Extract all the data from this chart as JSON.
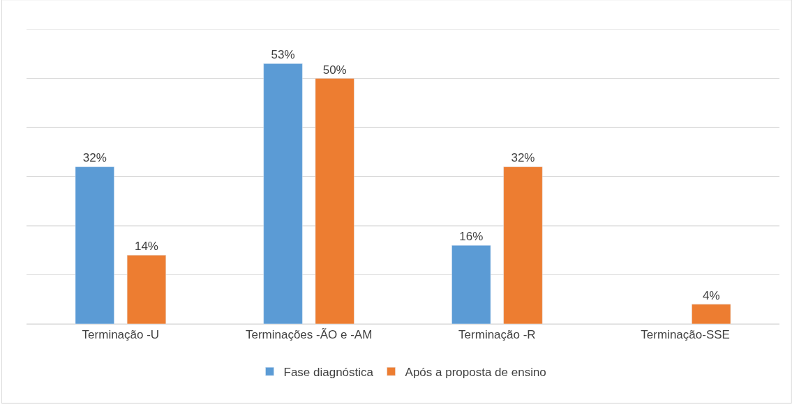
{
  "chart_data": {
    "type": "bar",
    "categories": [
      "Terminação -U",
      "Terminações -ÃO e -AM",
      "Terminação -R",
      "Terminação-SSE"
    ],
    "series": [
      {
        "name": "Fase diagnóstica",
        "color": "#5b9bd5",
        "values": [
          32,
          53,
          16,
          null
        ],
        "value_labels": [
          "32%",
          "53%",
          "16%",
          null
        ]
      },
      {
        "name": "Após a proposta de ensino",
        "color": "#ed7d31",
        "values": [
          14,
          50,
          32,
          4
        ],
        "value_labels": [
          "14%",
          "50%",
          "32%",
          "4%"
        ]
      }
    ],
    "ylim": [
      0,
      60
    ],
    "yticks": [
      {
        "value": 0,
        "label": null
      },
      {
        "value": 10,
        "label": null
      },
      {
        "value": 20,
        "label": null
      },
      {
        "value": 30,
        "label": null
      },
      {
        "value": 40,
        "label": null
      },
      {
        "value": 50,
        "label": null
      },
      {
        "value": 60,
        "label": null
      }
    ],
    "grid": "y",
    "legend": "bottom",
    "tick_labels": "x"
  }
}
